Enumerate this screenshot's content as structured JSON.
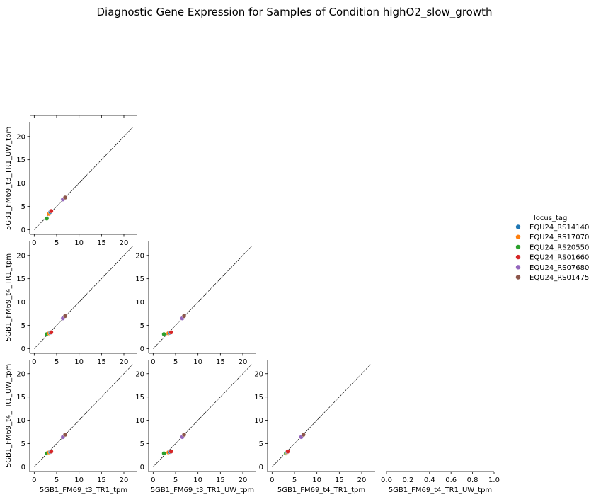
{
  "chart_data": {
    "type": "scatter",
    "title": "Diagnostic Gene Expression for Samples of Condition highO2_slow_growth",
    "variables": [
      "5GB1_FM69_t3_TR1_tpm",
      "5GB1_FM69_t3_TR1_UW_tpm",
      "5GB1_FM69_t4_TR1_tpm",
      "5GB1_FM69_t4_TR1_UW_tpm"
    ],
    "xlim": [
      -1,
      23
    ],
    "ylim": [
      -1,
      23
    ],
    "ticks": [
      0,
      5,
      10,
      15,
      20
    ],
    "empty_ticks": [
      "0.0",
      "0.2",
      "0.4",
      "0.6",
      "0.8",
      "1.0"
    ],
    "diagonal_line": [
      0,
      22
    ],
    "legend": {
      "title": "locus_tag",
      "placement": "center-right",
      "entries": [
        {
          "name": "EQU24_RS14140",
          "color": "#1f77b4"
        },
        {
          "name": "EQU24_RS17070",
          "color": "#ff7f0e"
        },
        {
          "name": "EQU24_RS20550",
          "color": "#2ca02c"
        },
        {
          "name": "EQU24_RS01660",
          "color": "#d62728"
        },
        {
          "name": "EQU24_RS07680",
          "color": "#9467bd"
        },
        {
          "name": "EQU24_RS01475",
          "color": "#8c564b"
        }
      ]
    },
    "panels": [
      {
        "row": 1,
        "col": 0,
        "xvar": "5GB1_FM69_t3_TR1_tpm",
        "yvar": "5GB1_FM69_t3_TR1_UW_tpm",
        "points": [
          {
            "locus": "EQU24_RS20550",
            "x": 2.8,
            "y": 2.4
          },
          {
            "locus": "EQU24_RS17070",
            "x": 3.3,
            "y": 3.4
          },
          {
            "locus": "EQU24_RS14140",
            "x": 3.6,
            "y": 3.8
          },
          {
            "locus": "EQU24_RS01660",
            "x": 3.8,
            "y": 4.0
          },
          {
            "locus": "EQU24_RS07680",
            "x": 6.4,
            "y": 6.5
          },
          {
            "locus": "EQU24_RS01475",
            "x": 6.9,
            "y": 6.9
          }
        ]
      },
      {
        "row": 2,
        "col": 0,
        "xvar": "5GB1_FM69_t3_TR1_tpm",
        "yvar": "5GB1_FM69_t4_TR1_tpm",
        "points": [
          {
            "locus": "EQU24_RS20550",
            "x": 2.8,
            "y": 3.1
          },
          {
            "locus": "EQU24_RS17070",
            "x": 3.3,
            "y": 3.3
          },
          {
            "locus": "EQU24_RS14140",
            "x": 3.6,
            "y": 3.4
          },
          {
            "locus": "EQU24_RS01660",
            "x": 3.8,
            "y": 3.5
          },
          {
            "locus": "EQU24_RS07680",
            "x": 6.4,
            "y": 6.5
          },
          {
            "locus": "EQU24_RS01475",
            "x": 6.9,
            "y": 7.0
          }
        ]
      },
      {
        "row": 2,
        "col": 1,
        "xvar": "5GB1_FM69_t3_TR1_UW_tpm",
        "yvar": "5GB1_FM69_t4_TR1_tpm",
        "points": [
          {
            "locus": "EQU24_RS20550",
            "x": 2.4,
            "y": 3.1
          },
          {
            "locus": "EQU24_RS17070",
            "x": 3.4,
            "y": 3.3
          },
          {
            "locus": "EQU24_RS14140",
            "x": 3.8,
            "y": 3.4
          },
          {
            "locus": "EQU24_RS01660",
            "x": 4.0,
            "y": 3.5
          },
          {
            "locus": "EQU24_RS07680",
            "x": 6.5,
            "y": 6.5
          },
          {
            "locus": "EQU24_RS01475",
            "x": 6.9,
            "y": 7.0
          }
        ]
      },
      {
        "row": 3,
        "col": 0,
        "xvar": "5GB1_FM69_t3_TR1_tpm",
        "yvar": "5GB1_FM69_t4_TR1_UW_tpm",
        "points": [
          {
            "locus": "EQU24_RS20550",
            "x": 2.8,
            "y": 2.9
          },
          {
            "locus": "EQU24_RS17070",
            "x": 3.3,
            "y": 3.1
          },
          {
            "locus": "EQU24_RS14140",
            "x": 3.6,
            "y": 3.2
          },
          {
            "locus": "EQU24_RS01660",
            "x": 3.8,
            "y": 3.3
          },
          {
            "locus": "EQU24_RS07680",
            "x": 6.4,
            "y": 6.4
          },
          {
            "locus": "EQU24_RS01475",
            "x": 6.9,
            "y": 6.9
          }
        ]
      },
      {
        "row": 3,
        "col": 1,
        "xvar": "5GB1_FM69_t3_TR1_UW_tpm",
        "yvar": "5GB1_FM69_t4_TR1_UW_tpm",
        "points": [
          {
            "locus": "EQU24_RS20550",
            "x": 2.4,
            "y": 2.9
          },
          {
            "locus": "EQU24_RS17070",
            "x": 3.4,
            "y": 3.1
          },
          {
            "locus": "EQU24_RS14140",
            "x": 3.8,
            "y": 3.2
          },
          {
            "locus": "EQU24_RS01660",
            "x": 4.0,
            "y": 3.3
          },
          {
            "locus": "EQU24_RS07680",
            "x": 6.5,
            "y": 6.4
          },
          {
            "locus": "EQU24_RS01475",
            "x": 6.9,
            "y": 6.9
          }
        ]
      },
      {
        "row": 3,
        "col": 2,
        "xvar": "5GB1_FM69_t4_TR1_tpm",
        "yvar": "5GB1_FM69_t4_TR1_UW_tpm",
        "points": [
          {
            "locus": "EQU24_RS20550",
            "x": 3.1,
            "y": 2.9
          },
          {
            "locus": "EQU24_RS17070",
            "x": 3.3,
            "y": 3.1
          },
          {
            "locus": "EQU24_RS14140",
            "x": 3.4,
            "y": 3.2
          },
          {
            "locus": "EQU24_RS01660",
            "x": 3.5,
            "y": 3.3
          },
          {
            "locus": "EQU24_RS07680",
            "x": 6.5,
            "y": 6.4
          },
          {
            "locus": "EQU24_RS01475",
            "x": 7.0,
            "y": 6.9
          }
        ]
      }
    ]
  }
}
